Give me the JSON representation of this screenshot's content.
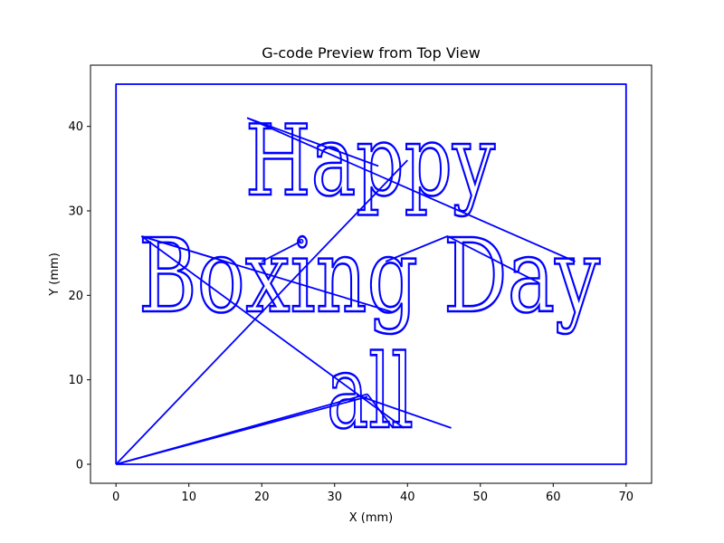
{
  "chart_data": {
    "type": "line",
    "title": "G-code Preview from Top View",
    "xlabel": "X (mm)",
    "ylabel": "Y (mm)",
    "xlim": [
      -3.5,
      73.5
    ],
    "ylim": [
      -2.25,
      47.25
    ],
    "xticks": [
      0,
      10,
      20,
      30,
      40,
      50,
      60,
      70
    ],
    "yticks": [
      0,
      10,
      20,
      30,
      40
    ],
    "grid": false,
    "line_color": "#0000ff",
    "text_paths": [
      {
        "text": "Happy"
      },
      {
        "text": "Boxing Day"
      },
      {
        "text": "all"
      }
    ],
    "series": [
      {
        "x": [
          0,
          70,
          70,
          0,
          0
        ],
        "y": [
          0,
          0,
          45,
          45,
          0
        ]
      },
      {
        "x": [
          0,
          40
        ],
        "y": [
          0,
          36
        ]
      },
      {
        "x": [
          0,
          34.5
        ],
        "y": [
          0,
          8
        ]
      },
      {
        "x": [
          0,
          34.5
        ],
        "y": [
          0,
          8.3
        ]
      },
      {
        "x": [
          3.5,
          39.5
        ],
        "y": [
          27,
          4.3
        ]
      },
      {
        "x": [
          3.5,
          15
        ],
        "y": [
          27,
          24
        ]
      },
      {
        "x": [
          20,
          25.4
        ],
        "y": [
          24,
          26.4
        ]
      },
      {
        "x": [
          3.5,
          38
        ],
        "y": [
          27,
          18
        ]
      },
      {
        "x": [
          37,
          45.5,
          58
        ],
        "y": [
          24,
          27,
          21.5
        ]
      },
      {
        "x": [
          18,
          63
        ],
        "y": [
          41,
          24
        ]
      },
      {
        "x": [
          18,
          36
        ],
        "y": [
          41,
          35.3
        ]
      },
      {
        "x": [
          33,
          46
        ],
        "y": [
          8.2,
          4.3
        ]
      },
      {
        "x": [
          34.5,
          38
        ],
        "y": [
          8.3,
          4.3
        ]
      }
    ]
  }
}
